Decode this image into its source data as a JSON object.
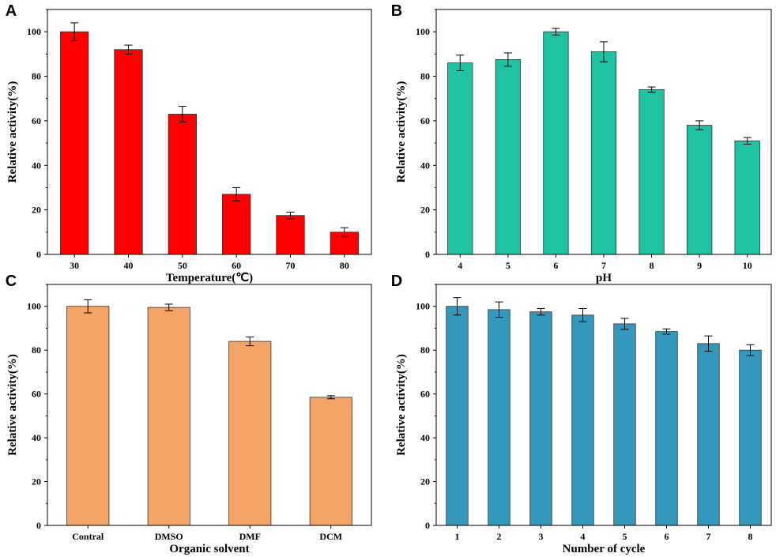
{
  "chart_data": [
    {
      "panel": "A",
      "type": "bar",
      "categories": [
        "30",
        "40",
        "50",
        "60",
        "70",
        "80"
      ],
      "values": [
        100,
        92,
        63,
        27,
        17.5,
        10
      ],
      "errors": [
        4,
        2,
        3.5,
        3,
        1.5,
        2
      ],
      "xlabel": "Temperature(℃)",
      "ylabel": "Relative activity(%)",
      "ylim": [
        0,
        110
      ],
      "yticks": [
        "0",
        "20",
        "40",
        "60",
        "80",
        "100"
      ],
      "color": "#ff0000"
    },
    {
      "panel": "B",
      "type": "bar",
      "categories": [
        "4",
        "5",
        "6",
        "7",
        "8",
        "9",
        "10"
      ],
      "values": [
        86,
        87.5,
        100,
        91,
        74,
        58,
        51
      ],
      "errors": [
        3.5,
        3,
        1.5,
        4.5,
        1.2,
        2,
        1.5
      ],
      "xlabel": "pH",
      "ylabel": "Relative activity(%)",
      "ylim": [
        0,
        110
      ],
      "yticks": [
        "0",
        "20",
        "40",
        "60",
        "80",
        "100"
      ],
      "color": "#1fc3a3"
    },
    {
      "panel": "C",
      "type": "bar",
      "categories": [
        "Contral",
        "DMSO",
        "DMF",
        "DCM"
      ],
      "values": [
        100,
        99.5,
        84,
        58.5
      ],
      "errors": [
        3,
        1.5,
        2,
        0.7
      ],
      "xlabel": "Organic solvent",
      "ylabel": "Relative activity(%)",
      "ylim": [
        0,
        110
      ],
      "yticks": [
        "0",
        "20",
        "40",
        "60",
        "80",
        "100"
      ],
      "color": "#f4a466"
    },
    {
      "panel": "D",
      "type": "bar",
      "categories": [
        "1",
        "2",
        "3",
        "4",
        "5",
        "6",
        "7",
        "8"
      ],
      "values": [
        100,
        98.5,
        97.5,
        96,
        92,
        88.5,
        83,
        80
      ],
      "errors": [
        4,
        3.5,
        1.5,
        3,
        2.5,
        1.2,
        3.5,
        2.5
      ],
      "xlabel": "Number of cycle",
      "ylabel": "Relative activity(%)",
      "ylim": [
        0,
        110
      ],
      "yticks": [
        "0",
        "20",
        "40",
        "60",
        "80",
        "100"
      ],
      "color": "#3398bb"
    }
  ]
}
